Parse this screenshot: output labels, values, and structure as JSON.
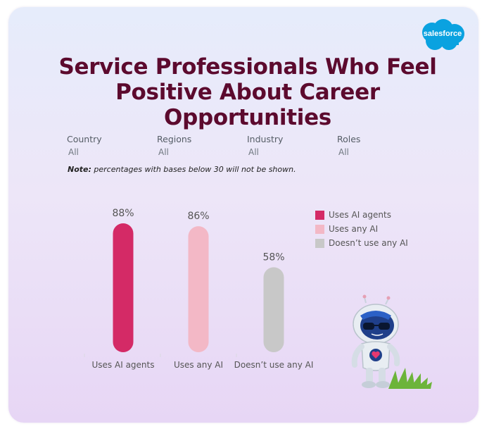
{
  "logo": {
    "text": "salesforce"
  },
  "title": {
    "line1": "Service Professionals Who Feel",
    "line2": "Positive About Career Opportunities"
  },
  "filters": [
    {
      "label": "Country",
      "value": "All"
    },
    {
      "label": "Regions",
      "value": "All"
    },
    {
      "label": "Industry",
      "value": "All"
    },
    {
      "label": "Roles",
      "value": "All"
    }
  ],
  "note": {
    "bold": "Note:",
    "text": " percentages with bases below 30 will not be shown."
  },
  "legend": [
    {
      "label": "Uses AI agents",
      "color": "#d42a66"
    },
    {
      "label": "Uses any AI",
      "color": "#f3b8c6"
    },
    {
      "label": "Doesn’t use any AI",
      "color": "#c8c8c8"
    }
  ],
  "chart_data": {
    "type": "bar",
    "categories": [
      "Uses AI agents",
      "Uses any AI",
      "Doesn’t use any AI"
    ],
    "values": [
      88,
      86,
      58
    ],
    "value_labels": [
      "88%",
      "86%",
      "58%"
    ],
    "colors": [
      "#d42a66",
      "#f3b8c6",
      "#c8c8c8"
    ],
    "title": "Service Professionals Who Feel Positive About Career Opportunities",
    "xlabel": "",
    "ylabel": "",
    "ylim": [
      0,
      100
    ],
    "grid": false,
    "legend_position": "top-right"
  }
}
